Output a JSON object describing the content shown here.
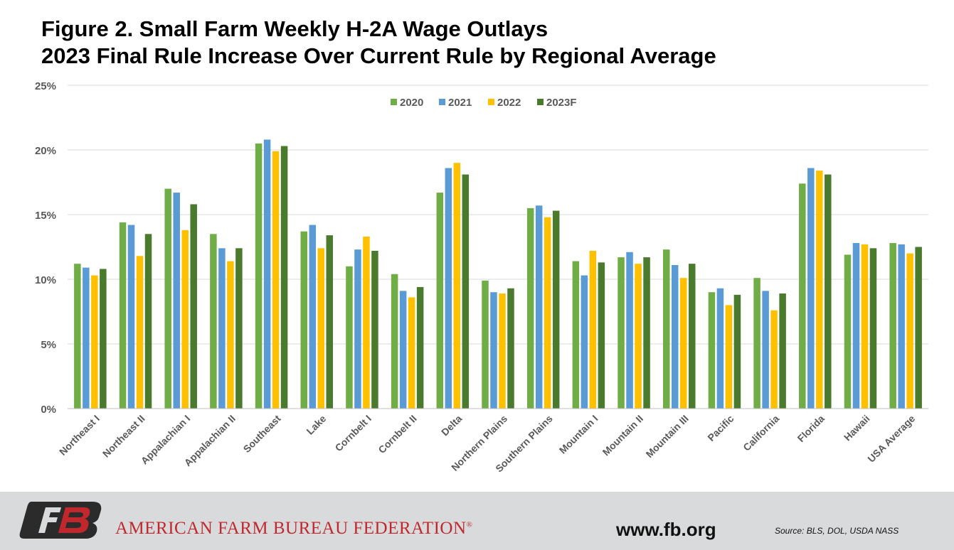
{
  "title_lines": [
    "Figure 2. Small Farm Weekly H-2A Wage Outlays",
    "2023 Final Rule Increase Over Current Rule by Regional Average"
  ],
  "chart_data": {
    "type": "bar",
    "title": "Figure 2. Small Farm Weekly H-2A Wage Outlays 2023 Final Rule Increase Over Current Rule by Regional Average",
    "xlabel": "",
    "ylabel": "",
    "ylim": [
      0,
      25
    ],
    "yticks": [
      "0%",
      "5%",
      "10%",
      "15%",
      "20%",
      "25%"
    ],
    "grid": true,
    "legend_position": "top-center",
    "categories": [
      "Northeast I",
      "Northeast II",
      "Appalachian I",
      "Appalachian II",
      "Southeast",
      "Lake",
      "Cornbelt I",
      "Cornbelt II",
      "Delta",
      "Northern Plains",
      "Southern Plains",
      "Mountain I",
      "Mountain II",
      "Mountain III",
      "Pacific",
      "California",
      "Florida",
      "Hawaii",
      "USA Average"
    ],
    "series": [
      {
        "name": "2020",
        "color": "#70ad47",
        "values": [
          11.2,
          14.4,
          17.0,
          13.5,
          20.5,
          13.7,
          11.0,
          10.4,
          16.7,
          9.9,
          15.5,
          11.4,
          11.7,
          12.3,
          9.0,
          10.1,
          17.4,
          11.9,
          12.8
        ]
      },
      {
        "name": "2021",
        "color": "#5b9bd5",
        "values": [
          10.9,
          14.2,
          16.7,
          12.4,
          20.8,
          14.2,
          12.3,
          9.1,
          18.6,
          9.0,
          15.7,
          10.3,
          12.1,
          11.1,
          9.3,
          9.1,
          18.6,
          12.8,
          12.7
        ]
      },
      {
        "name": "2022",
        "color": "#ffc000",
        "values": [
          10.3,
          11.8,
          13.8,
          11.4,
          19.9,
          12.4,
          13.3,
          8.6,
          19.0,
          8.9,
          14.8,
          12.2,
          11.2,
          10.1,
          8.0,
          7.6,
          18.4,
          12.7,
          12.0
        ]
      },
      {
        "name": "2023F",
        "color": "#4a7a2c",
        "values": [
          10.8,
          13.5,
          15.8,
          12.4,
          20.3,
          13.4,
          12.2,
          9.4,
          18.1,
          9.3,
          15.3,
          11.3,
          11.7,
          11.2,
          8.8,
          8.9,
          18.1,
          12.4,
          12.5
        ]
      }
    ]
  },
  "footer": {
    "organization": "AMERICAN FARM BUREAU FEDERATION",
    "registered_mark": "®",
    "website": "www.fb.org",
    "source": "Source: BLS, DOL, USDA NASS",
    "brand_color": "#c0282d",
    "logo_name": "afbf-fb-logo"
  }
}
